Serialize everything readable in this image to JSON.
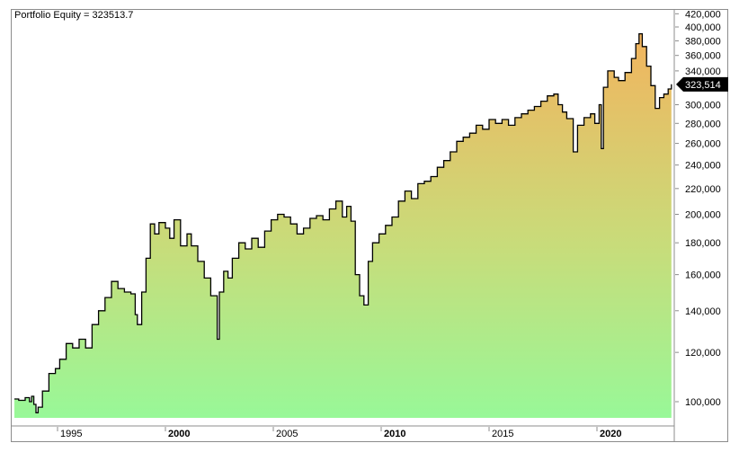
{
  "title": "Portfolio Equity = 323513.7",
  "last_value_label": "323,514",
  "colors": {
    "fill_top": "#f2b45e",
    "fill_bottom": "#98f898",
    "line": "#000000",
    "frame": "#8c8c8c",
    "last_value_bg": "#000000"
  },
  "chart_data": {
    "type": "area",
    "title": "Portfolio Equity = 323513.7",
    "xlabel": "",
    "ylabel": "",
    "y_scale": "log",
    "ylim": [
      93000,
      420000
    ],
    "xlim": [
      1993.0,
      2023.5
    ],
    "grid": false,
    "legend": "none",
    "x_ticks": [
      {
        "label": "1995",
        "value": 1995,
        "bold": false
      },
      {
        "label": "2000",
        "value": 2000,
        "bold": true
      },
      {
        "label": "2005",
        "value": 2005,
        "bold": false
      },
      {
        "label": "2010",
        "value": 2010,
        "bold": true
      },
      {
        "label": "2015",
        "value": 2015,
        "bold": false
      },
      {
        "label": "2020",
        "value": 2020,
        "bold": true
      }
    ],
    "y_ticks": [
      {
        "label": "100,000",
        "value": 100000
      },
      {
        "label": "120,000",
        "value": 120000
      },
      {
        "label": "140,000",
        "value": 140000
      },
      {
        "label": "160,000",
        "value": 160000
      },
      {
        "label": "180,000",
        "value": 180000
      },
      {
        "label": "200,000",
        "value": 200000
      },
      {
        "label": "220,000",
        "value": 220000
      },
      {
        "label": "240,000",
        "value": 240000
      },
      {
        "label": "260,000",
        "value": 260000
      },
      {
        "label": "280,000",
        "value": 280000
      },
      {
        "label": "300,000",
        "value": 300000
      },
      {
        "label": "340,000",
        "value": 340000
      },
      {
        "label": "360,000",
        "value": 360000
      },
      {
        "label": "380,000",
        "value": 380000
      },
      {
        "label": "400,000",
        "value": 400000
      },
      {
        "label": "420,000",
        "value": 420000
      }
    ],
    "last_value": 323513.7,
    "series": [
      {
        "name": "Portfolio Equity",
        "x": [
          1993.0,
          1993.2,
          1993.5,
          1993.7,
          1993.8,
          1993.9,
          1994.0,
          1994.1,
          1994.3,
          1994.6,
          1994.9,
          1995.1,
          1995.4,
          1995.7,
          1996.0,
          1996.3,
          1996.6,
          1996.9,
          1997.2,
          1997.5,
          1997.8,
          1998.1,
          1998.4,
          1998.6,
          1998.7,
          1998.9,
          1999.1,
          1999.3,
          1999.5,
          1999.7,
          2000.0,
          2000.2,
          2000.4,
          2000.7,
          2001.0,
          2001.2,
          2001.5,
          2001.8,
          2002.1,
          2002.4,
          2002.5,
          2002.7,
          2002.9,
          2003.1,
          2003.4,
          2003.7,
          2004.0,
          2004.3,
          2004.6,
          2004.9,
          2005.2,
          2005.5,
          2005.8,
          2006.1,
          2006.4,
          2006.7,
          2007.0,
          2007.3,
          2007.6,
          2007.9,
          2008.2,
          2008.4,
          2008.6,
          2008.8,
          2009.0,
          2009.2,
          2009.4,
          2009.6,
          2009.9,
          2010.2,
          2010.5,
          2010.8,
          2011.1,
          2011.4,
          2011.7,
          2012.0,
          2012.3,
          2012.6,
          2012.9,
          2013.2,
          2013.5,
          2013.8,
          2014.1,
          2014.4,
          2014.7,
          2015.0,
          2015.3,
          2015.6,
          2015.9,
          2016.2,
          2016.5,
          2016.8,
          2017.1,
          2017.4,
          2017.7,
          2018.0,
          2018.2,
          2018.4,
          2018.6,
          2018.9,
          2019.1,
          2019.4,
          2019.7,
          2019.9,
          2020.1,
          2020.2,
          2020.3,
          2020.5,
          2020.8,
          2021.0,
          2021.3,
          2021.6,
          2021.8,
          2021.95,
          2022.1,
          2022.3,
          2022.5,
          2022.7,
          2022.9,
          2023.1,
          2023.3,
          2023.45
        ],
        "values": [
          101000,
          100500,
          101500,
          100000,
          102000,
          99000,
          96000,
          98000,
          104000,
          111000,
          113000,
          117000,
          124000,
          122000,
          126000,
          122000,
          133000,
          140000,
          147000,
          156000,
          152000,
          150000,
          149000,
          138000,
          133000,
          150000,
          170000,
          193000,
          186000,
          194000,
          190000,
          183000,
          196000,
          178000,
          186000,
          178000,
          168000,
          158000,
          148000,
          126000,
          150000,
          162000,
          158000,
          170000,
          180000,
          176000,
          183000,
          177000,
          188000,
          196000,
          200000,
          198000,
          193000,
          186000,
          190000,
          197000,
          199000,
          196000,
          204000,
          210000,
          198000,
          206000,
          195000,
          160000,
          148000,
          143000,
          168000,
          180000,
          186000,
          192000,
          198000,
          210000,
          218000,
          212000,
          224000,
          226000,
          230000,
          238000,
          244000,
          252000,
          262000,
          266000,
          270000,
          278000,
          274000,
          284000,
          280000,
          284000,
          278000,
          286000,
          290000,
          294000,
          298000,
          304000,
          310000,
          312000,
          300000,
          292000,
          285000,
          252000,
          278000,
          286000,
          290000,
          280000,
          300000,
          255000,
          320000,
          340000,
          332000,
          328000,
          338000,
          356000,
          376000,
          390000,
          372000,
          346000,
          322000,
          296000,
          308000,
          312000,
          318000,
          323514
        ]
      }
    ]
  }
}
